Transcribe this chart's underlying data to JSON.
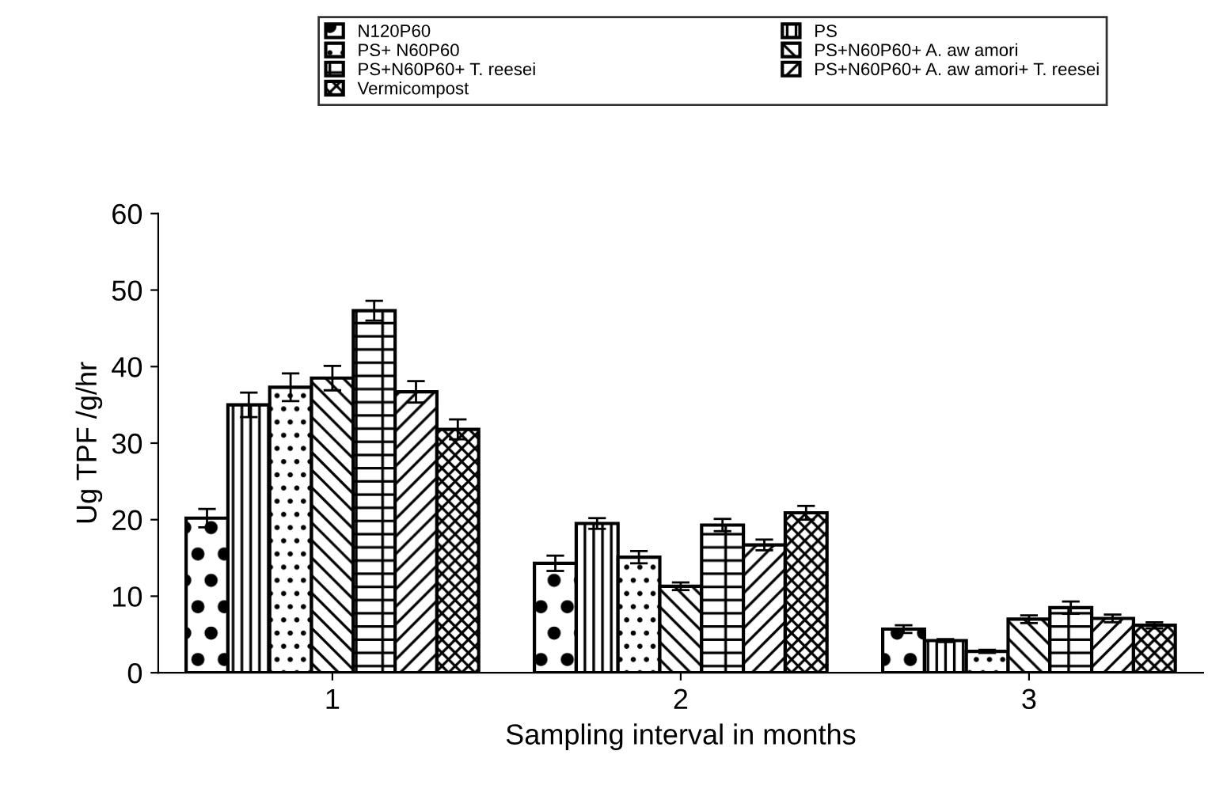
{
  "chart_data": {
    "type": "bar",
    "xlabel": "Sampling interval in months",
    "ylabel": "Ug TPF /g/hr",
    "categories": [
      "1",
      "2",
      "3"
    ],
    "series": [
      {
        "name": "N120P60",
        "color": "#000000",
        "values": [
          20.2,
          14.3,
          5.7
        ],
        "errors": [
          1.2,
          1.0,
          0.5
        ]
      },
      {
        "name": "PS",
        "color": "#000000",
        "values": [
          35.0,
          19.5,
          4.2
        ],
        "errors": [
          1.6,
          0.7,
          0.2
        ]
      },
      {
        "name": "PS+ N60P60",
        "color": "#000000",
        "values": [
          37.3,
          15.1,
          2.8
        ],
        "errors": [
          1.8,
          0.8,
          0.2
        ]
      },
      {
        "name": "PS+N60P60+ A. aw amori",
        "color": "#000000",
        "values": [
          38.5,
          11.3,
          7.0
        ],
        "errors": [
          1.6,
          0.5,
          0.5
        ]
      },
      {
        "name": "PS+N60P60+ T. reesei",
        "color": "#000000",
        "values": [
          47.3,
          19.3,
          8.5
        ],
        "errors": [
          1.3,
          0.8,
          0.8
        ]
      },
      {
        "name": "PS+N60P60+ A. aw amori+ T. reesei",
        "color": "#000000",
        "values": [
          36.7,
          16.7,
          7.1
        ],
        "errors": [
          1.4,
          0.7,
          0.5
        ]
      },
      {
        "name": "Vermicompost",
        "color": "#000000",
        "values": [
          31.8,
          20.9,
          6.2
        ],
        "errors": [
          1.3,
          0.9,
          0.4
        ]
      }
    ],
    "ylim": [
      0,
      60
    ],
    "yticks": [
      0,
      10,
      20,
      30,
      40,
      50,
      60
    ],
    "grid": false,
    "legend": "top"
  }
}
